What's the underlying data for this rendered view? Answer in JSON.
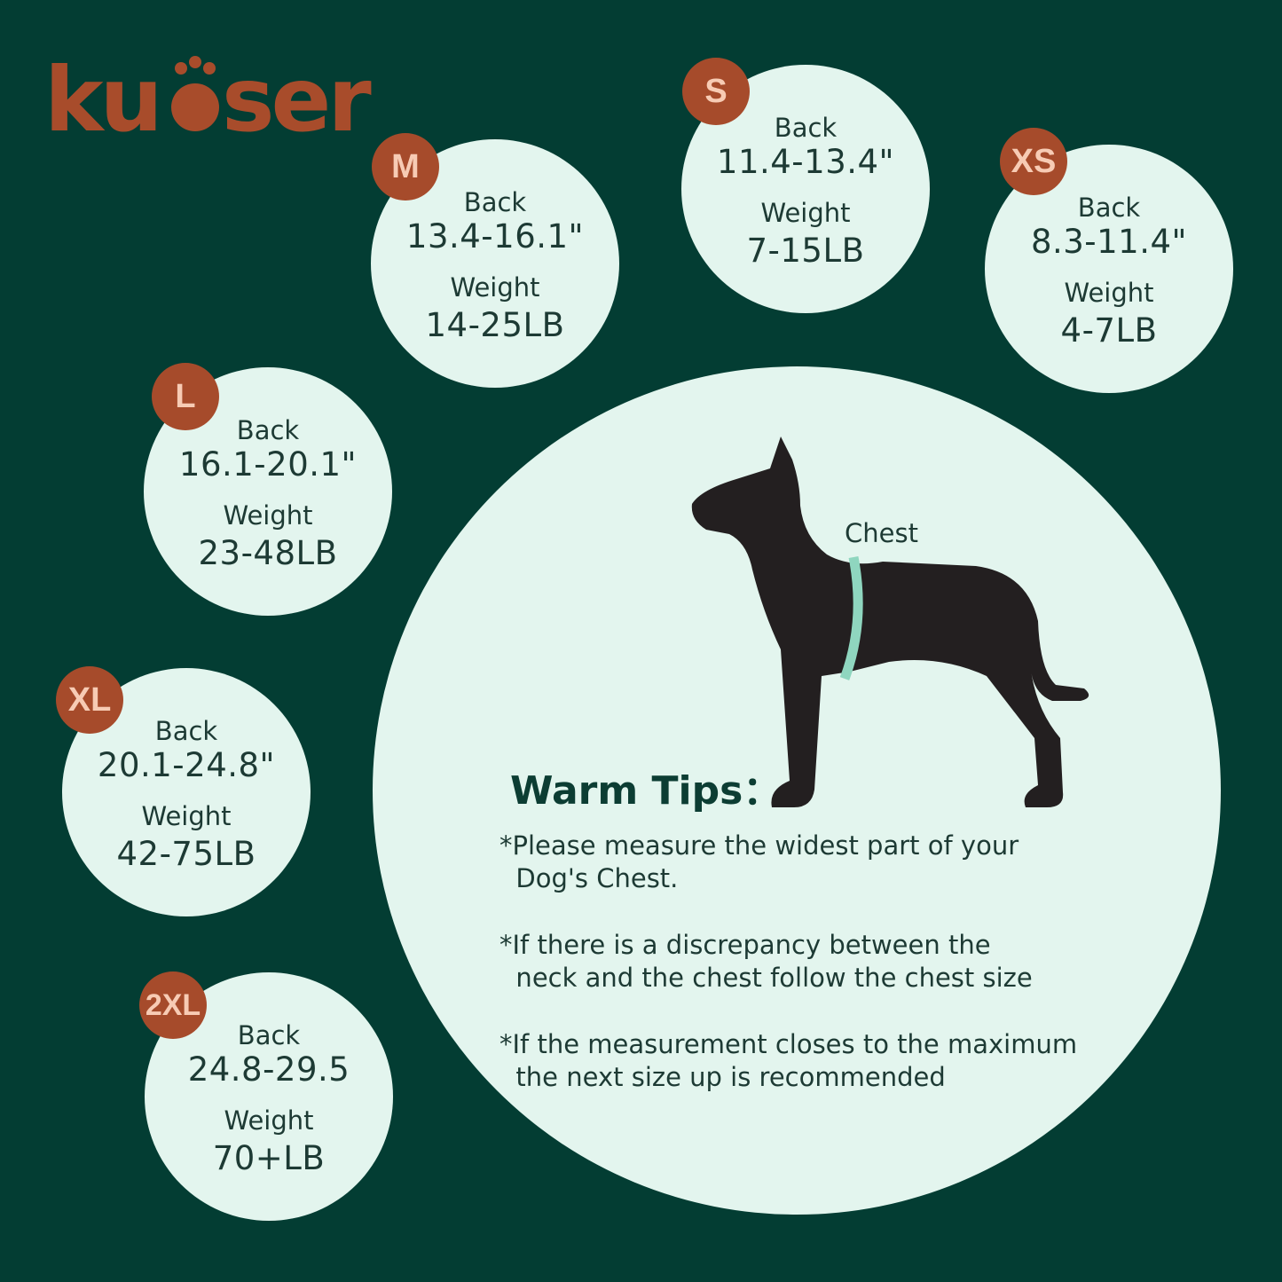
{
  "logo": {
    "text": "kuoser",
    "color": "#a84c2b"
  },
  "colors": {
    "background": "#033d33",
    "circle": "#e3f5ee",
    "badge": "#a64b2b",
    "badge_text": "#f7cbb4",
    "tape": "#8fd6bf"
  },
  "sizes": [
    {
      "size": "M",
      "back_label": "Back",
      "back": "13.4-16.1\"",
      "weight_label": "Weight",
      "weight": "14-25LB"
    },
    {
      "size": "S",
      "back_label": "Back",
      "back": "11.4-13.4\"",
      "weight_label": "Weight",
      "weight": "7-15LB"
    },
    {
      "size": "XS",
      "back_label": "Back",
      "back": "8.3-11.4\"",
      "weight_label": "Weight",
      "weight": "4-7LB"
    },
    {
      "size": "L",
      "back_label": "Back",
      "back": "16.1-20.1\"",
      "weight_label": "Weight",
      "weight": "23-48LB"
    },
    {
      "size": "XL",
      "back_label": "Back",
      "back": "20.1-24.8\"",
      "weight_label": "Weight",
      "weight": "42-75LB"
    },
    {
      "size": "2XL",
      "back_label": "Back",
      "back": "24.8-29.5",
      "weight_label": "Weight",
      "weight": "70+LB"
    }
  ],
  "illustration": {
    "chest_label": "Chest",
    "icon": "dog-silhouette-with-measuring-tape"
  },
  "tips": {
    "title": "Warm Tips：",
    "items": [
      "*Please measure the widest part of your\n  Dog's Chest.",
      "*If there is a discrepancy between the\n  neck and the chest follow the chest size",
      "*If the measurement closes to the maximum\n  the next size up is recommended"
    ]
  }
}
